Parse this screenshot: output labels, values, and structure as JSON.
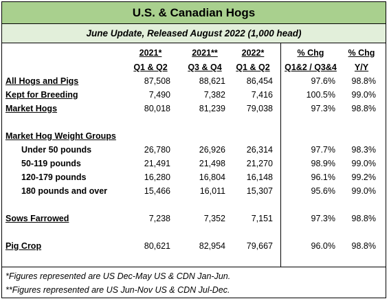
{
  "title": "U.S. & Canadian Hogs",
  "subtitle": "June Update, Released August 2022 (1,000 head)",
  "headers": {
    "col1_line1": "2021*",
    "col1_line2": "Q1 & Q2",
    "col2_line1": "2021**",
    "col2_line2": "Q3 & Q4",
    "col3_line1": "2022*",
    "col3_line2": "Q1 & Q2",
    "col4_line1": "% Chg",
    "col4_line2": "Q1&2 / Q3&4",
    "col5_line1": "% Chg",
    "col5_line2": "Y/Y"
  },
  "rows": [
    {
      "label": "All Hogs and Pigs",
      "v1": "87,508",
      "v2": "88,621",
      "v3": "86,454",
      "v4": "97.6%",
      "v5": "98.8%"
    },
    {
      "label": "Kept for Breeding",
      "v1": "7,490",
      "v2": "7,382",
      "v3": "7,416",
      "v4": "100.5%",
      "v5": "99.0%"
    },
    {
      "label": "Market Hogs",
      "v1": "80,018",
      "v2": "81,239",
      "v3": "79,038",
      "v4": "97.3%",
      "v5": "98.8%"
    },
    {
      "label": "Market Hog Weight Groups"
    },
    {
      "label": "Under 50 pounds",
      "v1": "26,780",
      "v2": "26,926",
      "v3": "26,314",
      "v4": "97.7%",
      "v5": "98.3%"
    },
    {
      "label": "50-119 pounds",
      "v1": "21,491",
      "v2": "21,498",
      "v3": "21,270",
      "v4": "98.9%",
      "v5": "99.0%"
    },
    {
      "label": "120-179 pounds",
      "v1": "16,280",
      "v2": "16,804",
      "v3": "16,148",
      "v4": "96.1%",
      "v5": "99.2%"
    },
    {
      "label": "180 pounds and over",
      "v1": "15,466",
      "v2": "16,011",
      "v3": "15,307",
      "v4": "95.6%",
      "v5": "99.0%"
    },
    {
      "label": "Sows Farrowed",
      "v1": "7,238",
      "v2": "7,352",
      "v3": "7,151",
      "v4": "97.3%",
      "v5": "98.8%"
    },
    {
      "label": "Pig Crop",
      "v1": "80,621",
      "v2": "82,954",
      "v3": "79,667",
      "v4": "96.0%",
      "v5": "98.8%"
    }
  ],
  "footnotes": [
    "*Figures represented are US Dec-May US & CDN Jan-Jun.",
    "**Figures represented are US Jun-Nov US & CDN Jul-Dec."
  ],
  "colors": {
    "title_bg": "#a9d08e",
    "subtitle_bg": "#e2efda"
  }
}
